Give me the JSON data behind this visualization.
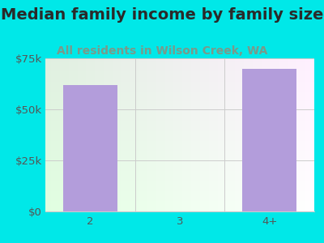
{
  "title": "Median family income by family size",
  "subtitle": "All residents in Wilson Creek, WA",
  "categories": [
    "2",
    "3",
    "4+"
  ],
  "values": [
    62000,
    0,
    70000
  ],
  "bar_color": "#b39ddb",
  "bg_color": "#00e8e8",
  "plot_bg_left": "#ddeedd",
  "plot_bg_right": "#f0fff0",
  "title_color": "#2a2a2a",
  "subtitle_color": "#7a9a8a",
  "tick_label_color": "#555555",
  "axis_label_color": "#555555",
  "grid_color": "#cccccc",
  "ylim": [
    0,
    75000
  ],
  "yticks": [
    0,
    25000,
    50000,
    75000
  ],
  "ytick_labels": [
    "$0",
    "$25k",
    "$50k",
    "$75k"
  ],
  "title_fontsize": 14,
  "subtitle_fontsize": 10,
  "tick_fontsize": 9.5,
  "bar_width": 0.6
}
